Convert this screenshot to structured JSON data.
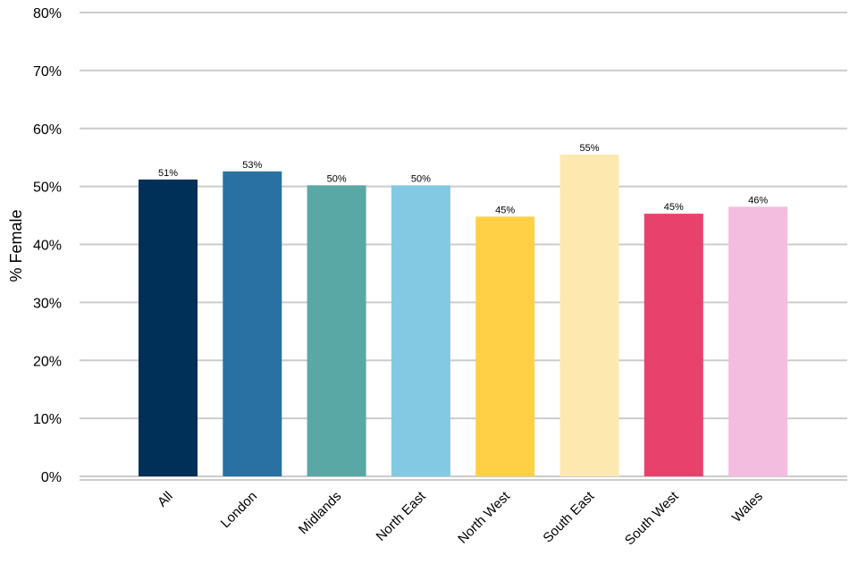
{
  "chart_data": {
    "type": "bar",
    "title": "",
    "xlabel": "",
    "ylabel": "% Female",
    "ylim": [
      0,
      80
    ],
    "y_ticks": [
      0,
      10,
      20,
      30,
      40,
      50,
      60,
      70,
      80
    ],
    "y_tick_labels": [
      "0%",
      "10%",
      "20%",
      "30%",
      "40%",
      "50%",
      "60%",
      "70%",
      "80%"
    ],
    "grid": true,
    "legend": "none",
    "categories": [
      "All",
      "London",
      "Midlands",
      "North East",
      "North West",
      "South East",
      "South West",
      "Wales"
    ],
    "values": [
      51.2,
      52.6,
      50.2,
      50.2,
      44.8,
      55.5,
      45.3,
      46.5
    ],
    "value_labels": [
      "51%",
      "53%",
      "50%",
      "50%",
      "45%",
      "55%",
      "45%",
      "46%"
    ],
    "colors": [
      "#003057",
      "#2a71a3",
      "#5aa8a5",
      "#84c9e3",
      "#ffd046",
      "#fde9b0",
      "#e8426c",
      "#f2bddf"
    ],
    "grid_color": "#cccccc"
  }
}
